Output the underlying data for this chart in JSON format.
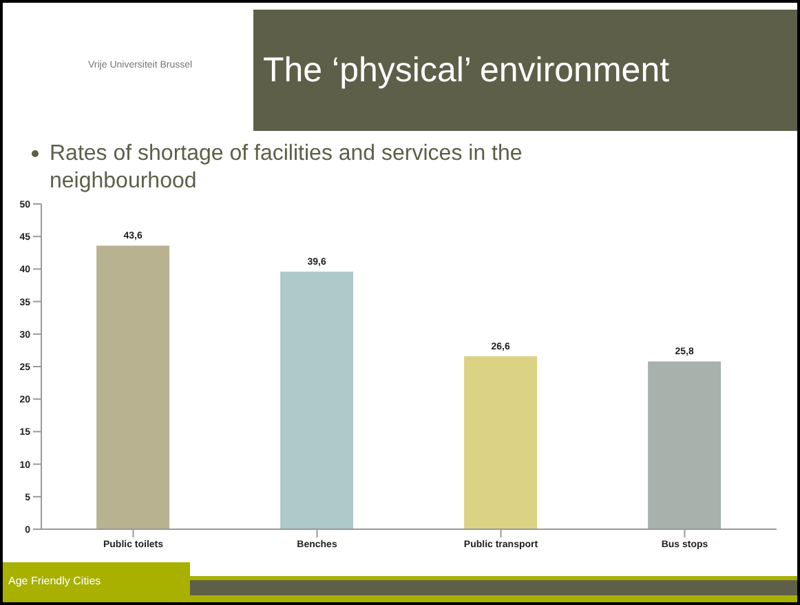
{
  "chart_data": {
    "type": "bar",
    "title": "The ‘physical’ environment",
    "subtitle": "Rates of shortage of facilities and services in the neighbourhood",
    "categories": [
      "Public toilets",
      "Benches",
      "Public transport",
      "Bus stops"
    ],
    "values": [
      43.6,
      39.6,
      26.6,
      25.8
    ],
    "colors": [
      "#b8b290",
      "#adc9c9",
      "#dbd383",
      "#a7b2ad"
    ],
    "value_labels": [
      "43,6",
      "39,6",
      "26,6",
      "25,8"
    ],
    "ylim": [
      0,
      50
    ],
    "yticks": [
      0,
      5,
      10,
      15,
      20,
      25,
      30,
      35,
      40,
      45,
      50
    ],
    "grid": false,
    "legend": false,
    "annotations": [
      "Vrije Universiteit Brussel",
      "Age Friendly Cities"
    ]
  }
}
